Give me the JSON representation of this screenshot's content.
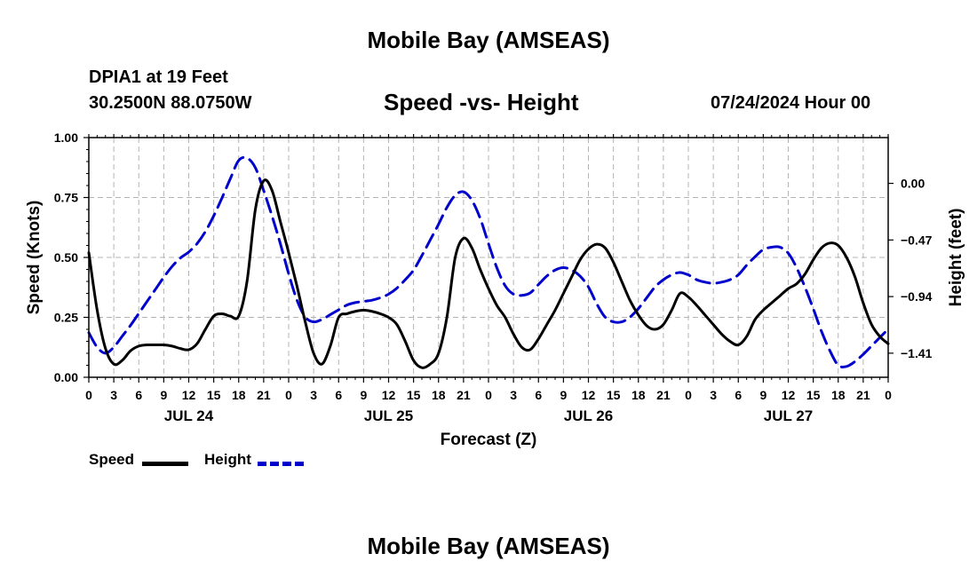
{
  "page": {
    "title": "Mobile Bay (AMSEAS)",
    "bottom_title": "Mobile Bay (AMSEAS)",
    "station": "DPIA1 at 19 Feet",
    "coords": "30.2500N  88.0750W",
    "subtitle": "Speed -vs- Height",
    "runtime": "07/24/2024 Hour 00"
  },
  "colors": {
    "speed": "#000000",
    "height": "#0000cc",
    "grid": "#b4b4b4"
  },
  "chart_data": {
    "type": "line",
    "title": "Speed -vs- Height",
    "xlabel": "Forecast (Z)",
    "ylabel": "Speed (Knots)",
    "y2label": "Height (feet)",
    "xlim": [
      0,
      96
    ],
    "ylim": [
      0,
      1
    ],
    "y2lim": [
      -1.61,
      0.38
    ],
    "x_ticks": [
      0,
      3,
      6,
      9,
      12,
      15,
      18,
      21,
      24,
      27,
      30,
      33,
      36,
      39,
      42,
      45,
      48,
      51,
      54,
      57,
      60,
      63,
      66,
      69,
      72,
      75,
      78,
      81,
      84,
      87,
      90,
      93,
      96
    ],
    "x_tick_labels": [
      "0",
      "3",
      "6",
      "9",
      "12",
      "15",
      "18",
      "21",
      "0",
      "3",
      "6",
      "9",
      "12",
      "15",
      "18",
      "21",
      "0",
      "3",
      "6",
      "9",
      "12",
      "15",
      "18",
      "21",
      "0",
      "3",
      "6",
      "9",
      "12",
      "15",
      "18",
      "21",
      "0"
    ],
    "day_labels": [
      {
        "x": 12,
        "label": "JUL 24"
      },
      {
        "x": 36,
        "label": "JUL 25"
      },
      {
        "x": 60,
        "label": "JUL 26"
      },
      {
        "x": 84,
        "label": "JUL 27"
      }
    ],
    "y_ticks": [
      0.0,
      0.25,
      0.5,
      0.75,
      1.0
    ],
    "y_tick_labels": [
      "0.00",
      "0.25",
      "0.50",
      "0.75",
      "1.00"
    ],
    "y2_ticks": [
      -1.41,
      -0.94,
      -0.47,
      0.0
    ],
    "y2_tick_labels": [
      "−1.41",
      "−0.94",
      "−0.47",
      "0.00"
    ],
    "legend": [
      {
        "name": "Speed",
        "style": "solid"
      },
      {
        "name": "Height",
        "style": "dashed"
      }
    ],
    "series": [
      {
        "name": "Speed",
        "axis": "left",
        "x": [
          0,
          1,
          2,
          3,
          4,
          5,
          6,
          7,
          8,
          9,
          10,
          11,
          12,
          13,
          14,
          15,
          16,
          17,
          18,
          19,
          20,
          21,
          22,
          23,
          24,
          25,
          26,
          27,
          28,
          29,
          30,
          31,
          32,
          33,
          34,
          35,
          36,
          37,
          38,
          39,
          40,
          41,
          42,
          43,
          44,
          45,
          46,
          47,
          48,
          49,
          50,
          51,
          52,
          53,
          54,
          55,
          56,
          57,
          58,
          59,
          60,
          61,
          62,
          63,
          64,
          65,
          66,
          67,
          68,
          69,
          70,
          71,
          72,
          73,
          74,
          75,
          76,
          77,
          78,
          79,
          80,
          81,
          82,
          83,
          84,
          85,
          86,
          87,
          88,
          89,
          90,
          91,
          92,
          93,
          94,
          95,
          96
        ],
        "values": [
          0.52,
          0.28,
          0.12,
          0.055,
          0.07,
          0.11,
          0.13,
          0.135,
          0.135,
          0.135,
          0.13,
          0.12,
          0.115,
          0.14,
          0.2,
          0.255,
          0.265,
          0.255,
          0.255,
          0.4,
          0.7,
          0.82,
          0.78,
          0.65,
          0.52,
          0.38,
          0.23,
          0.1,
          0.055,
          0.13,
          0.25,
          0.265,
          0.275,
          0.28,
          0.275,
          0.265,
          0.25,
          0.22,
          0.15,
          0.07,
          0.04,
          0.055,
          0.1,
          0.25,
          0.5,
          0.58,
          0.54,
          0.45,
          0.37,
          0.3,
          0.25,
          0.18,
          0.125,
          0.115,
          0.16,
          0.22,
          0.28,
          0.35,
          0.42,
          0.49,
          0.535,
          0.555,
          0.54,
          0.48,
          0.4,
          0.32,
          0.26,
          0.215,
          0.2,
          0.22,
          0.28,
          0.35,
          0.335,
          0.3,
          0.26,
          0.22,
          0.18,
          0.15,
          0.135,
          0.17,
          0.24,
          0.28,
          0.31,
          0.34,
          0.37,
          0.39,
          0.43,
          0.49,
          0.54,
          0.56,
          0.55,
          0.5,
          0.42,
          0.31,
          0.22,
          0.17,
          0.14
        ]
      },
      {
        "name": "Height",
        "axis": "right",
        "x": [
          0,
          1,
          2,
          3,
          4,
          5,
          6,
          7,
          8,
          9,
          10,
          11,
          12,
          13,
          14,
          15,
          16,
          17,
          18,
          19,
          20,
          21,
          22,
          23,
          24,
          25,
          26,
          27,
          28,
          29,
          30,
          31,
          32,
          33,
          34,
          35,
          36,
          37,
          38,
          39,
          40,
          41,
          42,
          43,
          44,
          45,
          46,
          47,
          48,
          49,
          50,
          51,
          52,
          53,
          54,
          55,
          56,
          57,
          58,
          59,
          60,
          61,
          62,
          63,
          64,
          65,
          66,
          67,
          68,
          69,
          70,
          71,
          72,
          73,
          74,
          75,
          76,
          77,
          78,
          79,
          80,
          81,
          82,
          83,
          84,
          85,
          86,
          87,
          88,
          89,
          90,
          91,
          92,
          93,
          94,
          95,
          96
        ],
        "values": [
          -1.24,
          -1.36,
          -1.41,
          -1.36,
          -1.27,
          -1.18,
          -1.08,
          -0.98,
          -0.88,
          -0.78,
          -0.69,
          -0.62,
          -0.57,
          -0.5,
          -0.4,
          -0.27,
          -0.12,
          0.04,
          0.19,
          0.21,
          0.13,
          -0.06,
          -0.27,
          -0.5,
          -0.75,
          -0.97,
          -1.11,
          -1.15,
          -1.13,
          -1.09,
          -1.05,
          -1.01,
          -0.99,
          -0.98,
          -0.97,
          -0.95,
          -0.92,
          -0.87,
          -0.8,
          -0.72,
          -0.6,
          -0.47,
          -0.34,
          -0.2,
          -0.1,
          -0.07,
          -0.14,
          -0.29,
          -0.5,
          -0.7,
          -0.85,
          -0.92,
          -0.93,
          -0.91,
          -0.84,
          -0.77,
          -0.72,
          -0.7,
          -0.72,
          -0.77,
          -0.86,
          -1.0,
          -1.11,
          -1.15,
          -1.15,
          -1.11,
          -1.04,
          -0.95,
          -0.86,
          -0.8,
          -0.76,
          -0.74,
          -0.76,
          -0.8,
          -0.82,
          -0.83,
          -0.82,
          -0.8,
          -0.76,
          -0.68,
          -0.61,
          -0.55,
          -0.53,
          -0.53,
          -0.58,
          -0.7,
          -0.86,
          -1.04,
          -1.23,
          -1.39,
          -1.51,
          -1.52,
          -1.48,
          -1.42,
          -1.35,
          -1.28,
          -1.21
        ]
      }
    ]
  }
}
